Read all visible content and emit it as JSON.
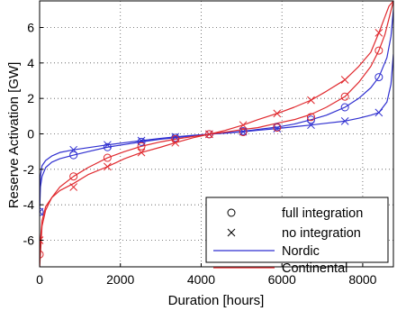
{
  "chart_data": {
    "type": "line",
    "title": "",
    "xlabel": "Duration [hours]",
    "ylabel": "Reserve Activation [GW]",
    "xlim": [
      0,
      8760
    ],
    "ylim": [
      -7.5,
      7.5
    ],
    "x_ticks": [
      0,
      2000,
      4000,
      6000,
      8000
    ],
    "y_ticks": [
      -6,
      -4,
      -2,
      0,
      2,
      4,
      6
    ],
    "x_tick_labels": [
      "0",
      "2000",
      "4000",
      "6000",
      "8000"
    ],
    "y_tick_labels": [
      "-6",
      "-4",
      "-2",
      "0",
      "2",
      "4",
      "6"
    ],
    "grid": true,
    "legend_position": "bottom-right",
    "legend": [
      {
        "label": "full integration",
        "kind": "marker",
        "marker": "circle",
        "color": "#000000"
      },
      {
        "label": "no integration",
        "kind": "marker",
        "marker": "x",
        "color": "#000000"
      },
      {
        "label": "Nordic",
        "kind": "line",
        "color": "#2f2fd0"
      },
      {
        "label": "Continental",
        "kind": "line",
        "color": "#e0292e"
      }
    ],
    "series": [
      {
        "name": "Nordic",
        "integration": "full integration",
        "color": "#2f2fd0",
        "marker": "circle",
        "x": [
          0,
          20,
          60,
          150,
          300,
          500,
          840,
          1200,
          1680,
          2100,
          2520,
          3000,
          3360,
          3800,
          4200,
          4600,
          5040,
          5400,
          5880,
          6300,
          6720,
          7100,
          7560,
          7900,
          8200,
          8400,
          8600,
          8700,
          8760
        ],
        "y": [
          -4.4,
          -3.0,
          -2.4,
          -1.9,
          -1.6,
          -1.4,
          -1.2,
          -1.0,
          -0.75,
          -0.6,
          -0.45,
          -0.3,
          -0.22,
          -0.1,
          -0.02,
          0.05,
          0.15,
          0.25,
          0.38,
          0.55,
          0.8,
          1.05,
          1.5,
          2.0,
          2.6,
          3.2,
          4.3,
          5.5,
          7.0
        ],
        "markers_x": [
          0,
          840,
          1680,
          2520,
          3360,
          4200,
          5040,
          5880,
          6720,
          7560,
          8400
        ],
        "markers_y": [
          -4.4,
          -1.2,
          -0.75,
          -0.45,
          -0.22,
          -0.02,
          0.15,
          0.38,
          0.8,
          1.5,
          3.2
        ]
      },
      {
        "name": "Nordic",
        "integration": "no integration",
        "color": "#2f2fd0",
        "marker": "x",
        "x": [
          0,
          20,
          60,
          150,
          300,
          500,
          840,
          1200,
          1680,
          2100,
          2520,
          3000,
          3360,
          3800,
          4200,
          4600,
          5040,
          5400,
          5880,
          6300,
          6720,
          7100,
          7560,
          7900,
          8200,
          8400,
          8600,
          8700,
          8760
        ],
        "y": [
          -3.8,
          -2.4,
          -1.8,
          -1.5,
          -1.25,
          -1.05,
          -0.9,
          -0.78,
          -0.62,
          -0.5,
          -0.38,
          -0.25,
          -0.17,
          -0.08,
          -0.02,
          0.04,
          0.12,
          0.2,
          0.3,
          0.4,
          0.5,
          0.6,
          0.72,
          0.88,
          1.05,
          1.2,
          1.8,
          2.8,
          4.5
        ],
        "markers_x": [
          0,
          840,
          1680,
          2520,
          3360,
          4200,
          5040,
          5880,
          6720,
          7560,
          8400
        ],
        "markers_y": [
          -4.4,
          -0.9,
          -0.62,
          -0.38,
          -0.17,
          -0.02,
          0.12,
          0.3,
          0.5,
          0.72,
          1.2
        ]
      },
      {
        "name": "Continental",
        "integration": "full integration",
        "color": "#e0292e",
        "marker": "circle",
        "x": [
          0,
          20,
          60,
          150,
          300,
          500,
          840,
          1200,
          1680,
          2100,
          2520,
          3000,
          3360,
          3800,
          4200,
          4600,
          5040,
          5400,
          5880,
          6300,
          6720,
          7100,
          7560,
          7900,
          8200,
          8400,
          8550,
          8650,
          8760
        ],
        "y": [
          -7.5,
          -6.8,
          -5.2,
          -4.3,
          -3.6,
          -3.0,
          -2.4,
          -1.9,
          -1.35,
          -1.0,
          -0.7,
          -0.45,
          -0.3,
          -0.15,
          -0.02,
          0.1,
          0.25,
          0.35,
          0.6,
          0.8,
          1.1,
          1.5,
          2.1,
          2.9,
          3.8,
          4.7,
          5.6,
          6.5,
          7.5
        ],
        "markers_x": [
          0,
          840,
          1680,
          2520,
          3360,
          4200,
          5040,
          5880,
          6720,
          7560,
          8400
        ],
        "markers_y": [
          -6.8,
          -2.4,
          -1.35,
          -0.7,
          -0.3,
          -0.02,
          0.1,
          0.35,
          0.95,
          2.1,
          4.7
        ]
      },
      {
        "name": "Continental",
        "integration": "no integration",
        "color": "#e0292e",
        "marker": "x",
        "x": [
          0,
          20,
          60,
          150,
          300,
          500,
          840,
          1200,
          1680,
          2100,
          2520,
          3000,
          3360,
          3800,
          4200,
          4600,
          5040,
          5400,
          5880,
          6300,
          6720,
          7100,
          7560,
          7900,
          8200,
          8400,
          8550,
          8650,
          8760
        ],
        "y": [
          -7.5,
          -6.0,
          -4.9,
          -4.1,
          -3.6,
          -3.2,
          -2.8,
          -2.3,
          -1.85,
          -1.4,
          -1.05,
          -0.75,
          -0.5,
          -0.22,
          -0.02,
          0.2,
          0.5,
          0.8,
          1.15,
          1.5,
          1.9,
          2.4,
          3.05,
          3.8,
          4.6,
          5.7,
          6.6,
          7.2,
          7.5
        ],
        "markers_x": [
          0,
          840,
          1680,
          2520,
          3360,
          4200,
          5040,
          5880,
          6720,
          7560,
          8400
        ],
        "markers_y": [
          -6.0,
          -3.0,
          -1.85,
          -1.05,
          -0.5,
          -0.02,
          0.5,
          1.15,
          1.9,
          3.05,
          5.7
        ]
      }
    ]
  }
}
